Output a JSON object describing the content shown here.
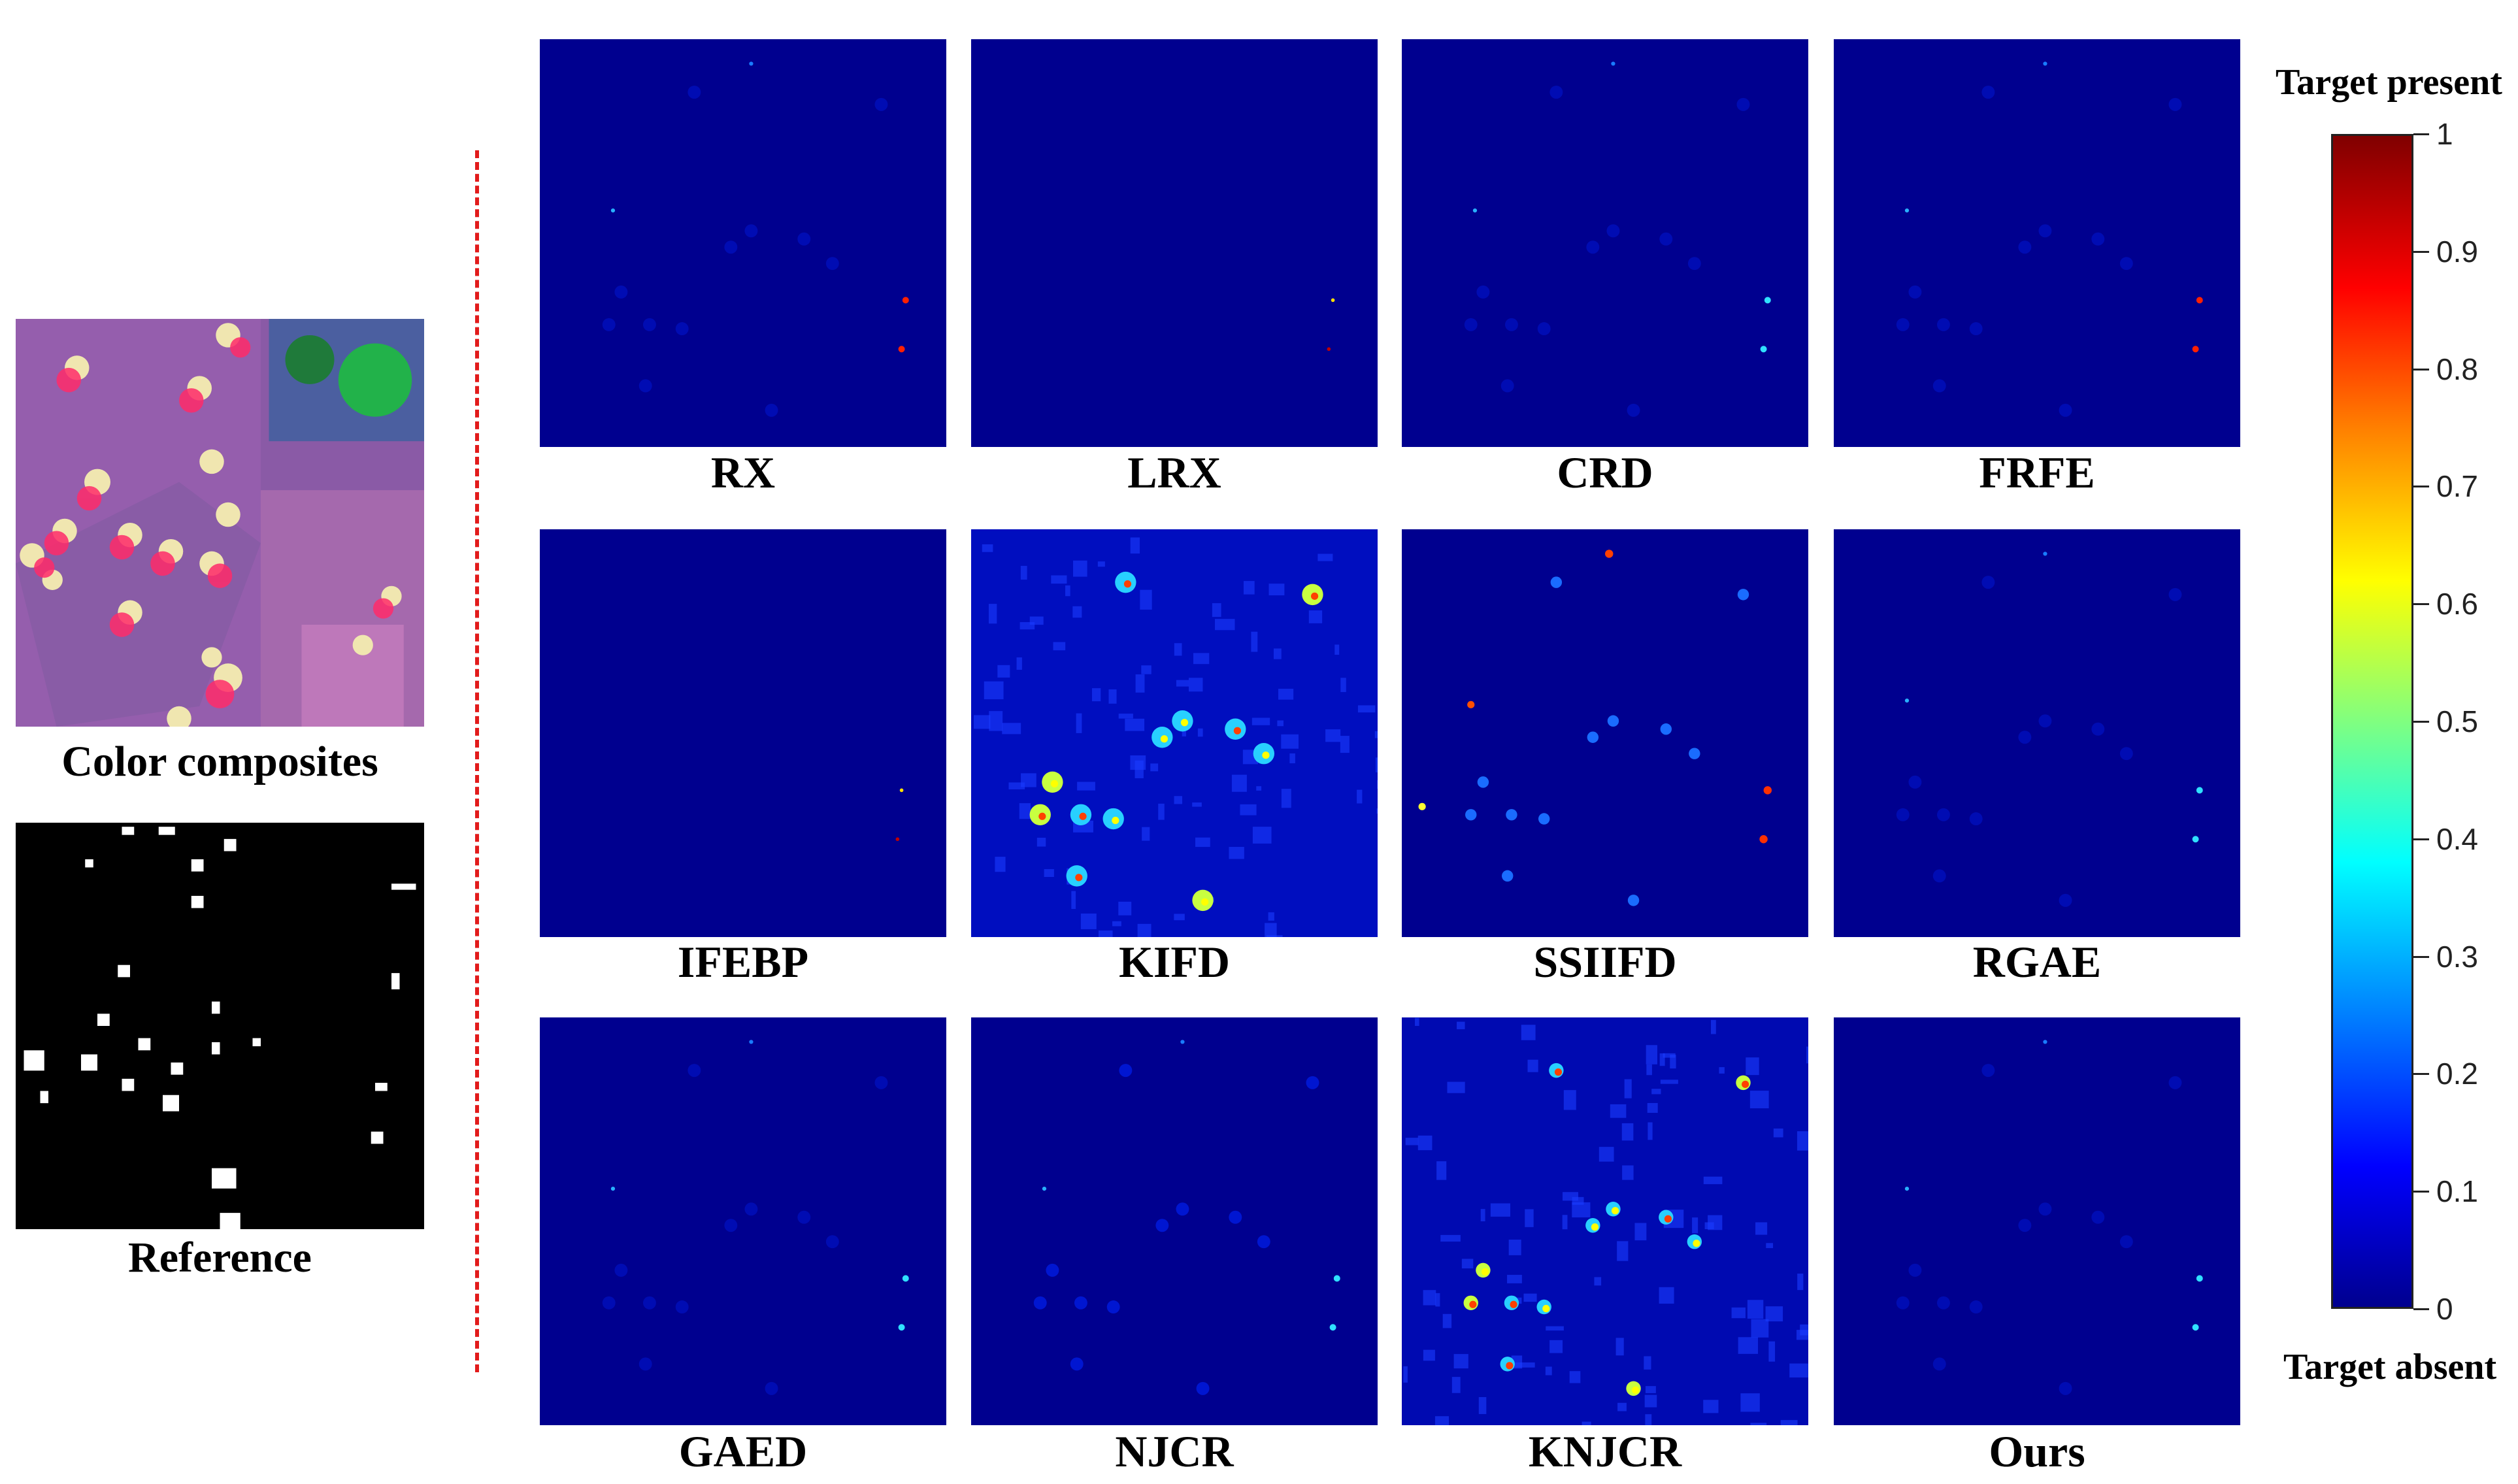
{
  "left": {
    "composite_label": "Color composites",
    "reference_label": "Reference"
  },
  "panels": [
    {
      "label": "RX"
    },
    {
      "label": "LRX"
    },
    {
      "label": "CRD"
    },
    {
      "label": "FRFE"
    },
    {
      "label": "IFEBP"
    },
    {
      "label": "KIFD"
    },
    {
      "label": "SSIIFD"
    },
    {
      "label": "RGAE"
    },
    {
      "label": "GAED"
    },
    {
      "label": "NJCR"
    },
    {
      "label": "KNJCR"
    },
    {
      "label": "Ours"
    }
  ],
  "colorbar": {
    "top_title": "Target present",
    "bottom_title": "Target absent",
    "ticks": [
      "1",
      "0.9",
      "0.8",
      "0.7",
      "0.6",
      "0.5",
      "0.4",
      "0.3",
      "0.2",
      "0.1",
      "0"
    ],
    "colors": [
      "#800000",
      "#ff0000",
      "#ff8000",
      "#ffff00",
      "#80ff80",
      "#00ffff",
      "#0080ff",
      "#0000ff",
      "#00008f"
    ]
  }
}
